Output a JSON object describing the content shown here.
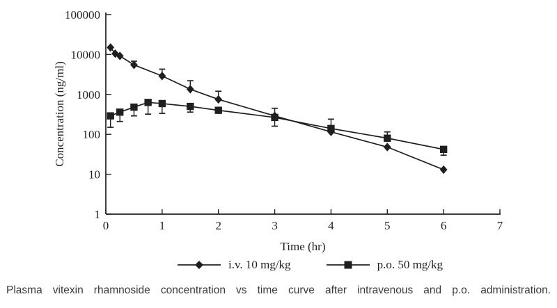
{
  "figure": {
    "caption": "Plasma vitexin rhamnoside concentration vs time curve after intravenous and p.o. administration."
  },
  "chart_data": {
    "type": "line",
    "title": "",
    "xlabel": "Time (hr)",
    "ylabel": "Concentration (ng/ml)",
    "grid": false,
    "legend_position": "bottom",
    "ink_color": "#1f1f1f",
    "x_axis": {
      "min": 0,
      "max": 7,
      "tick_step": 1,
      "scale": "linear"
    },
    "y_axis": {
      "min": 1,
      "max": 100000,
      "scale": "log10",
      "ticks": [
        1,
        10,
        100,
        1000,
        10000,
        100000
      ]
    },
    "series": [
      {
        "name": "i.v. 10 mg/kg",
        "marker": "diamond",
        "x": [
          0.083,
          0.167,
          0.25,
          0.5,
          1,
          1.5,
          2,
          3,
          4,
          5,
          6
        ],
        "y": [
          15000,
          10500,
          9200,
          5500,
          2900,
          1350,
          750,
          290,
          115,
          48,
          13
        ],
        "err_up": [
          null,
          null,
          null,
          6800,
          4300,
          2200,
          1200,
          450,
          null,
          null,
          null
        ],
        "err_down": [
          null,
          null,
          null,
          null,
          null,
          null,
          null,
          null,
          null,
          null,
          null
        ]
      },
      {
        "name": "p.o. 50 mg/kg",
        "marker": "square",
        "x": [
          0.083,
          0.25,
          0.5,
          0.75,
          1,
          1.5,
          2,
          3,
          4,
          5,
          6
        ],
        "y": [
          290,
          360,
          480,
          630,
          590,
          500,
          400,
          265,
          140,
          80,
          42
        ],
        "err_up": [
          null,
          null,
          null,
          null,
          null,
          null,
          null,
          null,
          240,
          115,
          null
        ],
        "err_down": [
          150,
          210,
          290,
          320,
          335,
          360,
          null,
          160,
          null,
          null,
          30
        ]
      }
    ]
  }
}
